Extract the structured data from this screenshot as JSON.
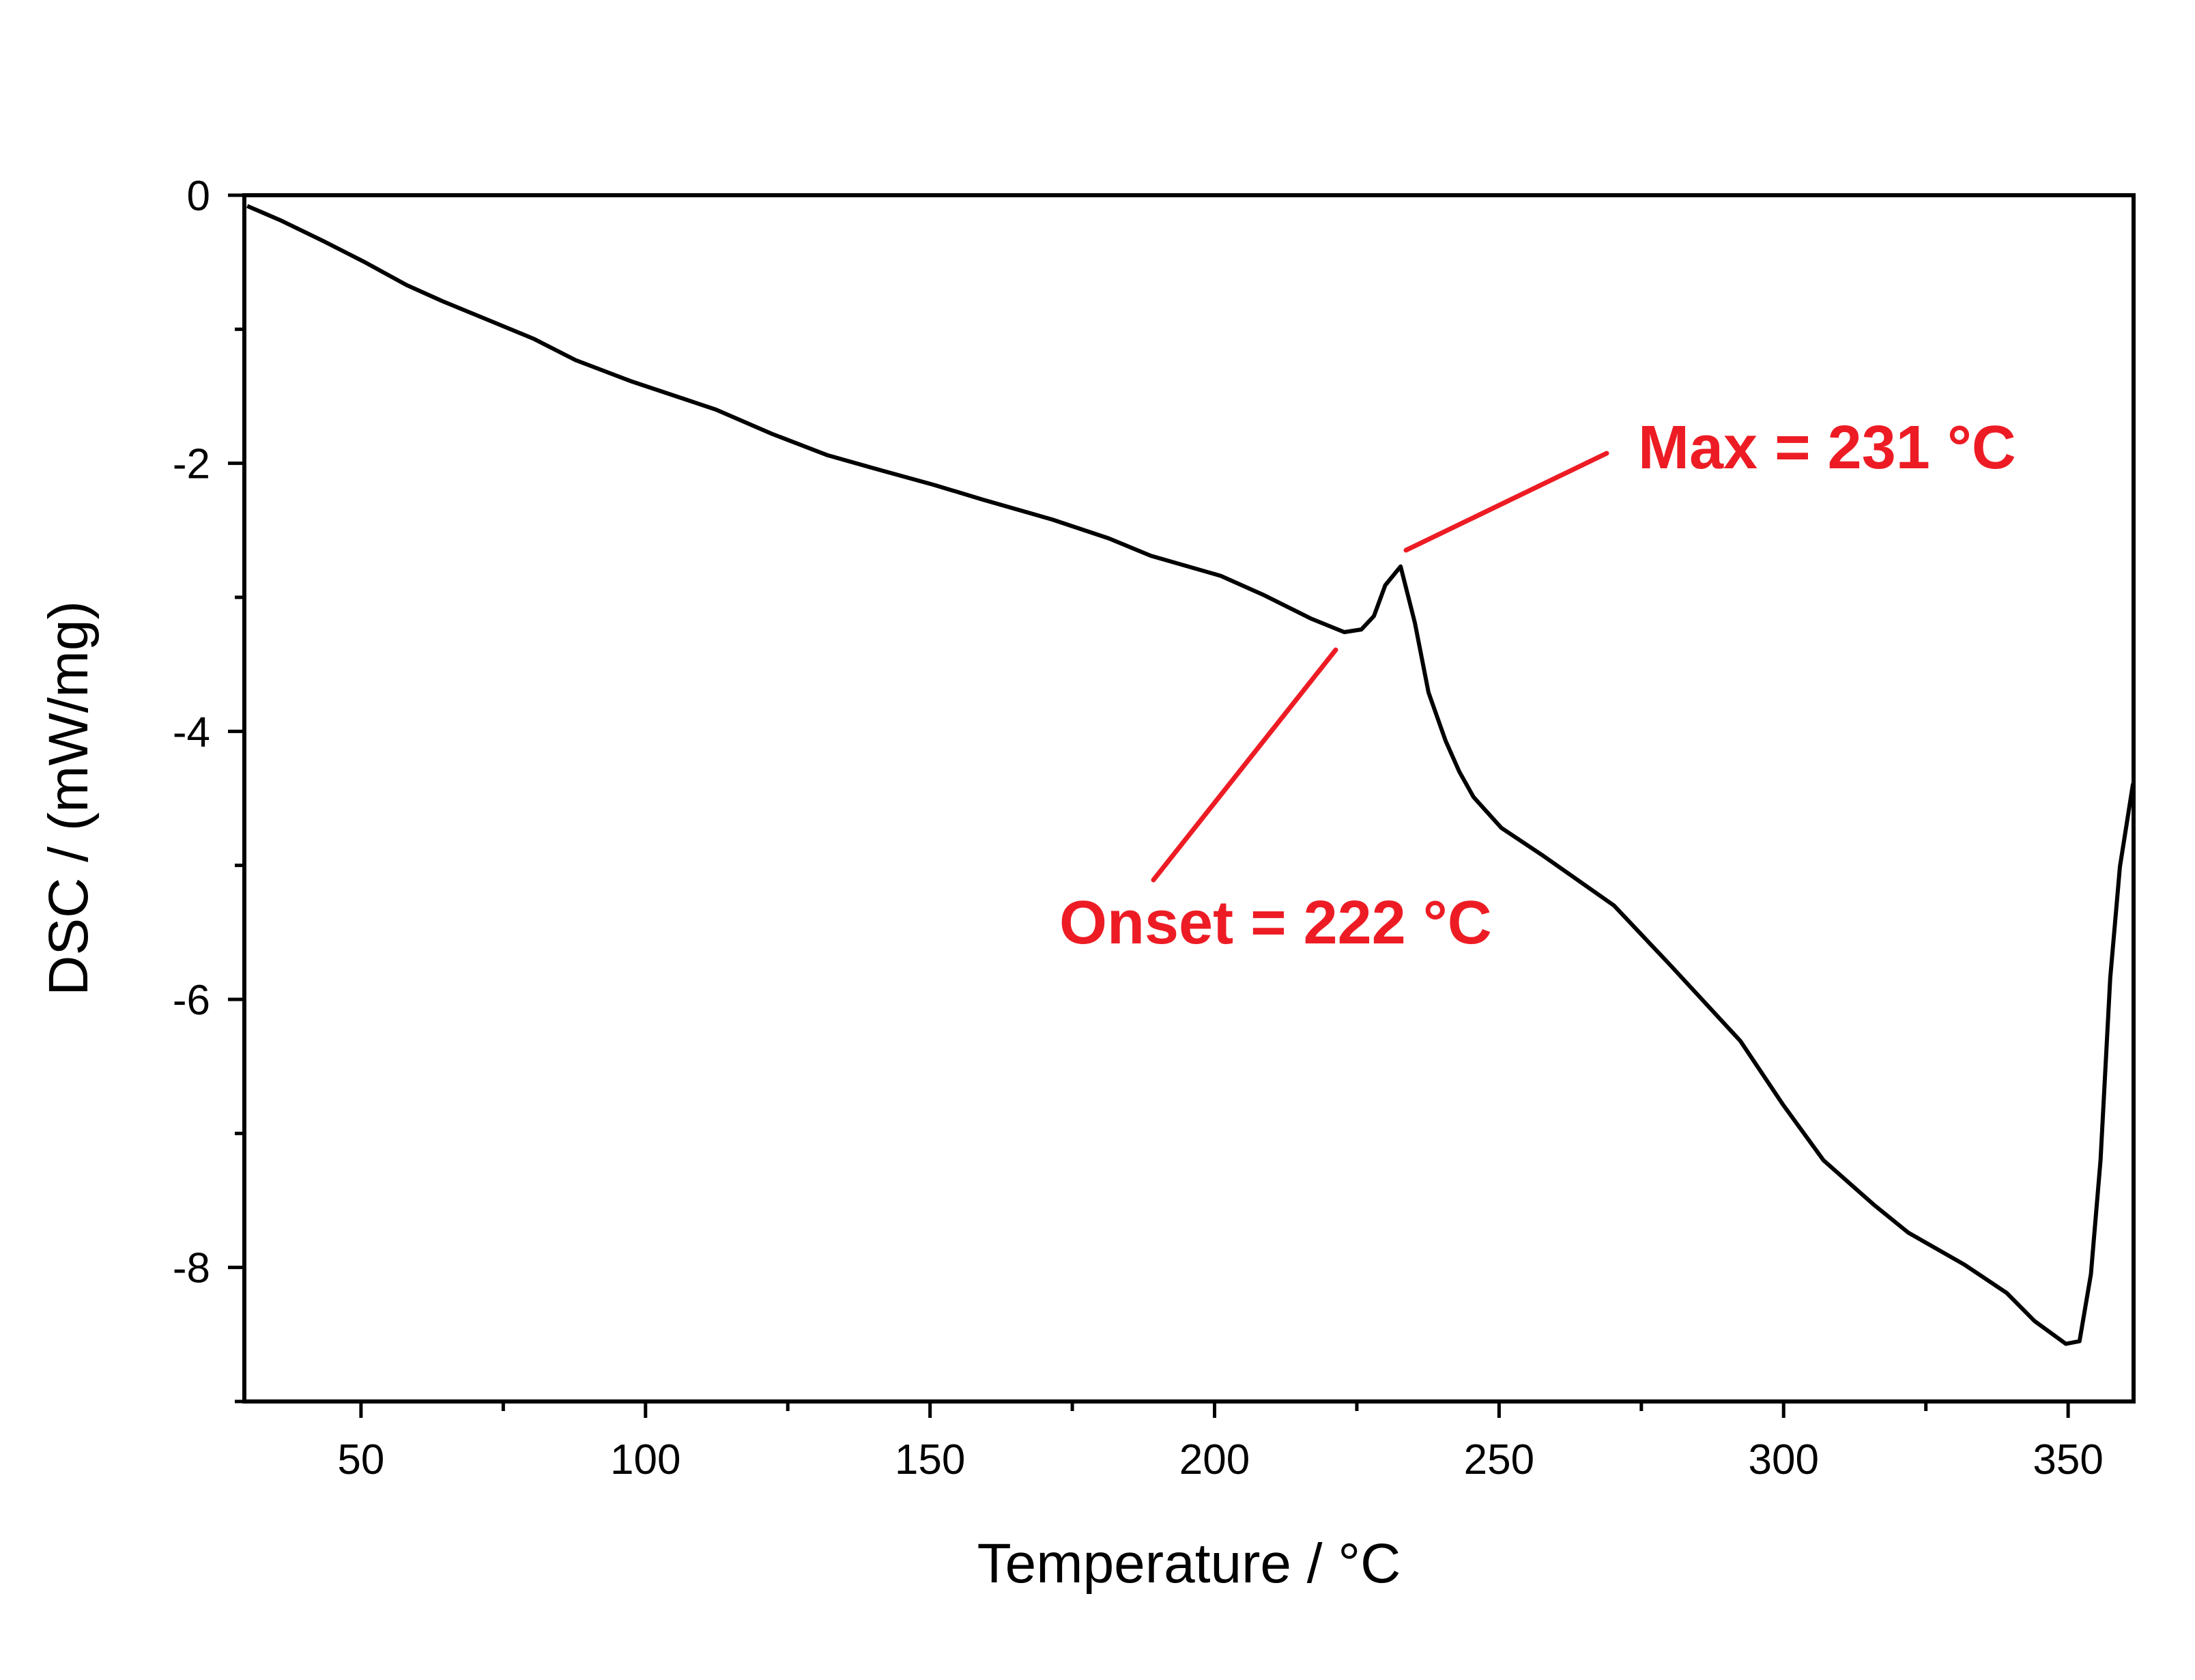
{
  "chart_data": {
    "type": "line",
    "title": "",
    "xlabel": "Temperature / °C",
    "ylabel": "DSC / (mW/mg)",
    "xlim": [
      29.5,
      361.5
    ],
    "ylim": [
      -9,
      0
    ],
    "x_ticks": [
      50,
      100,
      150,
      200,
      250,
      300,
      350
    ],
    "x_minor_step": 25,
    "y_ticks": [
      0,
      -2,
      -4,
      -6,
      -8
    ],
    "y_minor_step": 1,
    "grid": false,
    "line_color": "#000000",
    "annotation_color": "#ed1c24",
    "series": [
      {
        "x": [
          30,
          36,
          43.3,
          50.7,
          58,
          64.3,
          72.9,
          80.3,
          87.7,
          97.6,
          112.4,
          122.2,
          132,
          142,
          150.6,
          159.2,
          171.5,
          181.4,
          188.8,
          201.1,
          208.5,
          217,
          222.8,
          225.8,
          228,
          230,
          232.7,
          235.2,
          237.6,
          240.6,
          243,
          245.5,
          250.4,
          257.8,
          270.2,
          280,
          292.4,
          299.8,
          307,
          315.8,
          321.9,
          331.8,
          339.2,
          344.1,
          349.6,
          352,
          354,
          355.7,
          357.4,
          359.1,
          361.4
        ],
        "y": [
          -0.08,
          -0.19,
          -0.34,
          -0.5,
          -0.67,
          -0.79,
          -0.94,
          -1.07,
          -1.23,
          -1.39,
          -1.6,
          -1.78,
          -1.94,
          -2.06,
          -2.16,
          -2.27,
          -2.42,
          -2.56,
          -2.69,
          -2.84,
          -2.98,
          -3.16,
          -3.26,
          -3.24,
          -3.14,
          -2.91,
          -2.77,
          -3.19,
          -3.71,
          -4.07,
          -4.3,
          -4.49,
          -4.72,
          -4.93,
          -5.3,
          -5.74,
          -6.31,
          -6.78,
          -7.2,
          -7.53,
          -7.74,
          -7.98,
          -8.19,
          -8.4,
          -8.57,
          -8.55,
          -8.05,
          -7.2,
          -5.84,
          -5.01,
          -4.39
        ]
      }
    ],
    "annotations": [
      {
        "text": "Max = 231 °C",
        "target": [
          232,
          -2.65
        ]
      },
      {
        "text": "Onset = 222 °C",
        "target": [
          222,
          -3.35
        ]
      }
    ]
  }
}
